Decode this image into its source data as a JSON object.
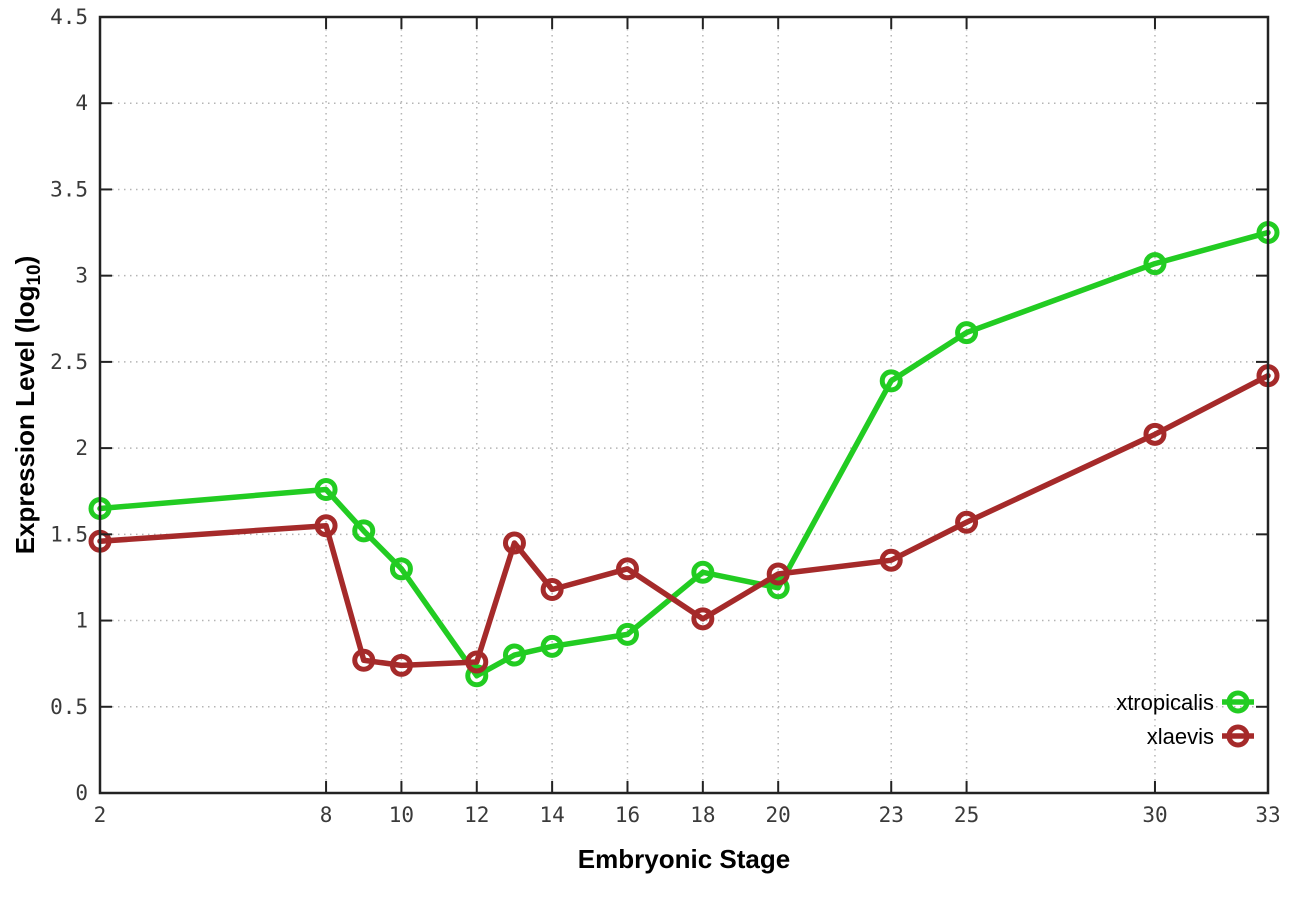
{
  "page": {
    "background": "#ffffff"
  },
  "chart_data": {
    "type": "line",
    "title": "",
    "xlabel": "Embryonic Stage",
    "ylabel": "Expression Level (log10)",
    "ylabel_parts": {
      "main": "Expression Level (log",
      "subscript": "10",
      "suffix": ")"
    },
    "xlim": [
      2,
      33
    ],
    "ylim": [
      0,
      4.5
    ],
    "x_ticks": [
      2,
      8,
      10,
      12,
      14,
      16,
      18,
      20,
      23,
      25,
      30,
      33
    ],
    "x_tick_labels": [
      "2",
      "8",
      "10",
      "12",
      "14",
      "16",
      "18",
      "20",
      "23",
      "25",
      "30",
      "33"
    ],
    "y_ticks": [
      0,
      0.5,
      1,
      1.5,
      2,
      2.5,
      3,
      3.5,
      4,
      4.5
    ],
    "y_tick_labels": [
      "0",
      "0.5",
      "1",
      "1.5",
      "2",
      "2.5",
      "3",
      "3.5",
      "4",
      "4.5"
    ],
    "grid": true,
    "grid_style": "dotted",
    "legend_position": "inside-bottom-right",
    "marker": "open-circle",
    "x": [
      2,
      8,
      9,
      10,
      12,
      13,
      14,
      16,
      18,
      20,
      23,
      25,
      30,
      33
    ],
    "series": [
      {
        "name": "xtropicalis",
        "color": "#22cc22",
        "values": [
          1.65,
          1.76,
          1.52,
          1.3,
          0.68,
          0.8,
          0.85,
          0.92,
          1.28,
          1.19,
          2.39,
          2.67,
          3.07,
          3.25
        ]
      },
      {
        "name": "xlaevis",
        "color": "#a52a2a",
        "values": [
          1.46,
          1.55,
          0.77,
          0.74,
          0.76,
          1.45,
          1.18,
          1.3,
          1.01,
          1.27,
          1.35,
          1.57,
          2.08,
          2.42
        ]
      }
    ]
  },
  "legend": {
    "entries": [
      {
        "label": "xtropicalis",
        "color": "#22cc22"
      },
      {
        "label": "xlaevis",
        "color": "#a52a2a"
      }
    ]
  },
  "colors": {
    "background": "#ffffff",
    "border": "#222222",
    "grid": "#b4b4b4",
    "tick": "#222222",
    "tick_label": "#3a3a3a",
    "axis_label": "#000000",
    "legend_text": "#000000"
  }
}
